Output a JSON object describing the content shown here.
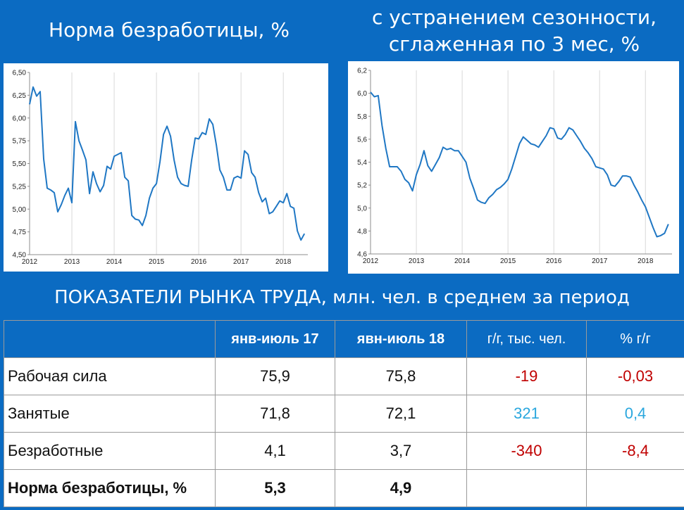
{
  "titles": {
    "left": "Норма безработицы, %",
    "right_line1": "с устранением сезонности,",
    "right_line2": "сглаженная по 3 мес, %"
  },
  "section_heading": "ПОКАЗАТЕЛИ РЫНКА ТРУДА, млн. чел. в среднем за период",
  "colors": {
    "background": "#0b6bc2",
    "line": "#1f77c4",
    "negative": "#c00000",
    "positive": "#2aa7de"
  },
  "chart_data": [
    {
      "type": "line",
      "title": "",
      "xlabel": "",
      "ylabel": "",
      "ylim": [
        4.5,
        6.5
      ],
      "xlim": [
        2012,
        2018.58
      ],
      "yticks": [
        "6,50",
        "6,25",
        "6,00",
        "5,75",
        "5,50",
        "5,25",
        "5,00",
        "4,75",
        "4,50"
      ],
      "ytick_values": [
        6.5,
        6.25,
        6.0,
        5.75,
        5.5,
        5.25,
        5.0,
        4.75,
        4.5
      ],
      "xticks": [
        "2012",
        "2013",
        "2014",
        "2015",
        "2016",
        "2017",
        "2018"
      ],
      "grid": "vertical",
      "series": [
        {
          "x": [
            2012.0,
            2012.083,
            2012.167,
            2012.25,
            2012.333,
            2012.417,
            2012.5,
            2012.583,
            2012.667,
            2012.75,
            2012.833,
            2012.917,
            2013.0,
            2013.083,
            2013.167,
            2013.25,
            2013.333,
            2013.417,
            2013.5,
            2013.583,
            2013.667,
            2013.75,
            2013.833,
            2013.917,
            2014.0,
            2014.083,
            2014.167,
            2014.25,
            2014.333,
            2014.417,
            2014.5,
            2014.583,
            2014.667,
            2014.75,
            2014.833,
            2014.917,
            2015.0,
            2015.083,
            2015.167,
            2015.25,
            2015.333,
            2015.417,
            2015.5,
            2015.583,
            2015.667,
            2015.75,
            2015.833,
            2015.917,
            2016.0,
            2016.083,
            2016.167,
            2016.25,
            2016.333,
            2016.417,
            2016.5,
            2016.583,
            2016.667,
            2016.75,
            2016.833,
            2016.917,
            2017.0,
            2017.083,
            2017.167,
            2017.25,
            2017.333,
            2017.417,
            2017.5,
            2017.583,
            2017.667,
            2017.75,
            2017.833,
            2017.917,
            2018.0,
            2018.083,
            2018.167,
            2018.25,
            2018.333,
            2018.417,
            2018.5
          ],
          "values": [
            6.15,
            6.34,
            6.24,
            6.29,
            5.55,
            5.23,
            5.21,
            5.18,
            4.97,
            5.05,
            5.15,
            5.23,
            5.07,
            5.96,
            5.75,
            5.65,
            5.54,
            5.17,
            5.41,
            5.28,
            5.19,
            5.26,
            5.47,
            5.44,
            5.58,
            5.6,
            5.62,
            5.35,
            5.31,
            4.93,
            4.89,
            4.88,
            4.82,
            4.93,
            5.12,
            5.23,
            5.28,
            5.52,
            5.82,
            5.91,
            5.8,
            5.54,
            5.35,
            5.28,
            5.26,
            5.25,
            5.54,
            5.78,
            5.77,
            5.84,
            5.82,
            5.99,
            5.93,
            5.7,
            5.43,
            5.35,
            5.21,
            5.21,
            5.34,
            5.36,
            5.34,
            5.64,
            5.6,
            5.4,
            5.35,
            5.18,
            5.08,
            5.12,
            4.95,
            4.97,
            5.03,
            5.09,
            5.07,
            5.17,
            5.03,
            5.01,
            4.76,
            4.66,
            4.73
          ]
        }
      ]
    },
    {
      "type": "line",
      "title": "",
      "xlabel": "",
      "ylabel": "",
      "ylim": [
        4.6,
        6.2
      ],
      "xlim": [
        2012,
        2018.58
      ],
      "yticks": [
        "6,2",
        "6,0",
        "5,8",
        "5,6",
        "5,4",
        "5,2",
        "5,0",
        "4,8",
        "4,6"
      ],
      "ytick_values": [
        6.2,
        6.0,
        5.8,
        5.6,
        5.4,
        5.2,
        5.0,
        4.8,
        4.6
      ],
      "xticks": [
        "2012",
        "2013",
        "2014",
        "2015",
        "2016",
        "2017",
        "2018"
      ],
      "grid": "vertical",
      "series": [
        {
          "x": [
            2012.0,
            2012.083,
            2012.167,
            2012.25,
            2012.333,
            2012.417,
            2012.5,
            2012.583,
            2012.667,
            2012.75,
            2012.833,
            2012.917,
            2013.0,
            2013.083,
            2013.167,
            2013.25,
            2013.333,
            2013.417,
            2013.5,
            2013.583,
            2013.667,
            2013.75,
            2013.833,
            2013.917,
            2014.0,
            2014.083,
            2014.167,
            2014.25,
            2014.333,
            2014.417,
            2014.5,
            2014.583,
            2014.667,
            2014.75,
            2014.833,
            2014.917,
            2015.0,
            2015.083,
            2015.167,
            2015.25,
            2015.333,
            2015.417,
            2015.5,
            2015.583,
            2015.667,
            2015.75,
            2015.833,
            2015.917,
            2016.0,
            2016.083,
            2016.167,
            2016.25,
            2016.333,
            2016.417,
            2016.5,
            2016.583,
            2016.667,
            2016.75,
            2016.833,
            2016.917,
            2017.0,
            2017.083,
            2017.167,
            2017.25,
            2017.333,
            2017.417,
            2017.5,
            2017.583,
            2017.667,
            2017.75,
            2017.833,
            2017.917,
            2018.0,
            2018.083,
            2018.167,
            2018.25,
            2018.333,
            2018.417,
            2018.5
          ],
          "values": [
            6.01,
            5.97,
            5.98,
            5.72,
            5.52,
            5.36,
            5.36,
            5.36,
            5.32,
            5.25,
            5.22,
            5.15,
            5.29,
            5.38,
            5.5,
            5.37,
            5.32,
            5.38,
            5.44,
            5.53,
            5.51,
            5.52,
            5.5,
            5.5,
            5.45,
            5.4,
            5.26,
            5.17,
            5.07,
            5.05,
            5.04,
            5.09,
            5.12,
            5.16,
            5.18,
            5.21,
            5.25,
            5.34,
            5.45,
            5.56,
            5.62,
            5.59,
            5.56,
            5.55,
            5.53,
            5.58,
            5.63,
            5.7,
            5.69,
            5.61,
            5.6,
            5.64,
            5.7,
            5.68,
            5.63,
            5.58,
            5.52,
            5.48,
            5.43,
            5.36,
            5.35,
            5.34,
            5.29,
            5.2,
            5.19,
            5.23,
            5.28,
            5.28,
            5.27,
            5.2,
            5.14,
            5.07,
            5.01,
            4.92,
            4.83,
            4.75,
            4.76,
            4.78,
            4.86
          ]
        }
      ]
    }
  ],
  "table": {
    "headers": [
      "",
      "янв-июль 17",
      "явн-июль 18",
      "г/г, тыс. чел.",
      "% г/г"
    ],
    "rows": [
      {
        "label": "Рабочая сила",
        "v17": "75,9",
        "v18": "75,8",
        "yy_abs": "-19",
        "yy_pct": "-0,03",
        "tone": "neg"
      },
      {
        "label": "Занятые",
        "v17": "71,8",
        "v18": "72,1",
        "yy_abs": "321",
        "yy_pct": "0,4",
        "tone": "pos"
      },
      {
        "label": "Безработные",
        "v17": "4,1",
        "v18": "3,7",
        "yy_abs": "-340",
        "yy_pct": "-8,4",
        "tone": "neg"
      },
      {
        "label": "Норма безработицы, %",
        "v17": "5,3",
        "v18": "4,9",
        "yy_abs": "",
        "yy_pct": "",
        "tone": ""
      }
    ]
  }
}
